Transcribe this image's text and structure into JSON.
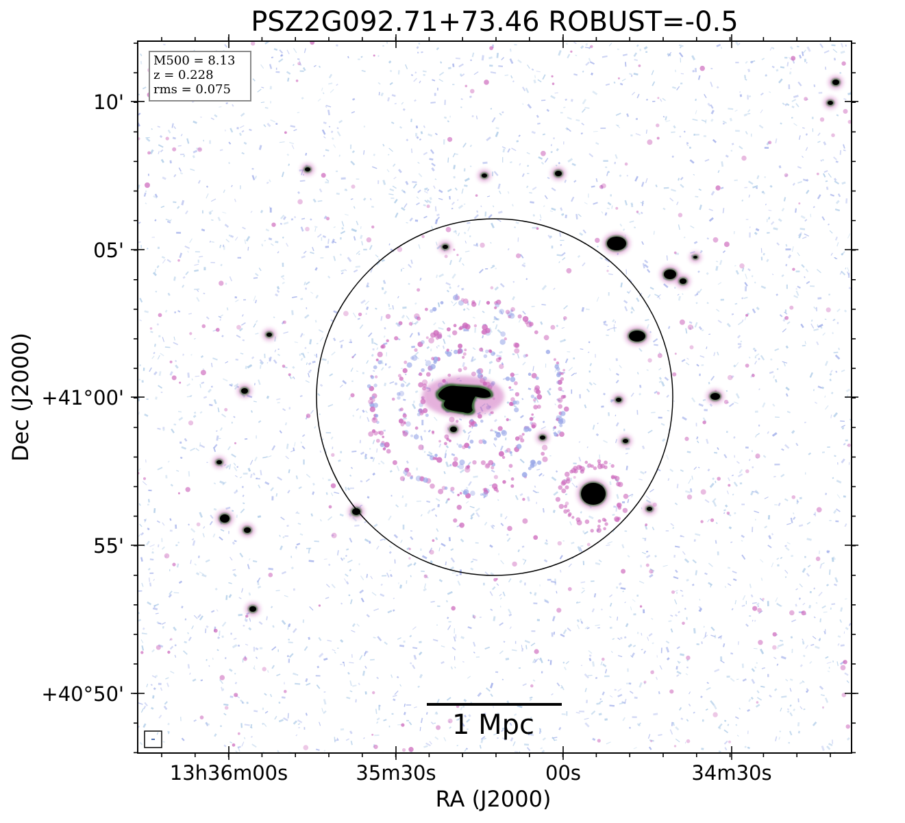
{
  "figure": {
    "title": "PSZ2G092.71+73.46 ROBUST=-0.5",
    "xlabel": "RA (J2000)",
    "ylabel": "Dec (J2000)",
    "x_ticks": [
      "13h36m00s",
      "35m30s",
      "00s",
      "34m30s"
    ],
    "y_ticks": [
      "10'",
      "05'",
      "+41°00'",
      "55'",
      "+40°50'"
    ],
    "info": {
      "line1": "M500 = 8.13",
      "line2": "z = 0.228",
      "line3": "rms = 0.075"
    },
    "scale_bar_label": "1 Mpc",
    "colors": {
      "background": "#ffffff",
      "noise_light": "#a9c8e6",
      "noise_blue": "#9aa8e8",
      "emission_pink": "#cc66bb",
      "emission_green": "#3d6b3a",
      "source_core": "#000000",
      "circle": "#000000"
    }
  }
}
